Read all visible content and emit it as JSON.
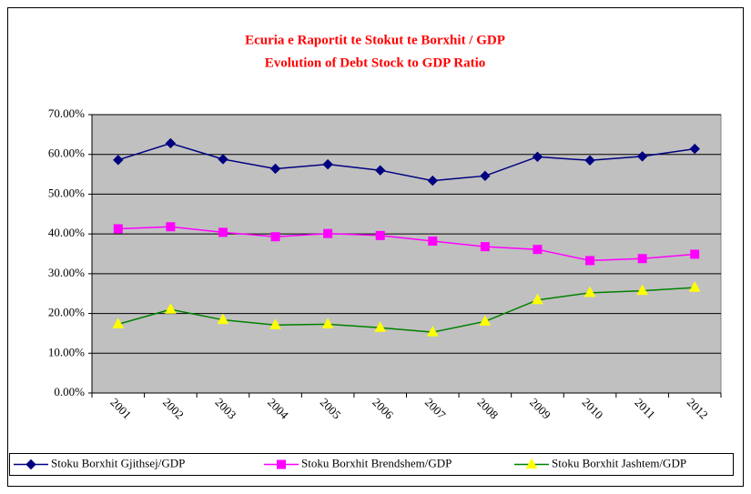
{
  "chart_data": {
    "type": "line",
    "title": "Ecuria e Raportit te Stokut te Borxhit / GDP",
    "subtitle": "Evolution of Debt Stock to GDP Ratio",
    "categories": [
      "2001",
      "2002",
      "2003",
      "2004",
      "2005",
      "2006",
      "2007",
      "2008",
      "2009",
      "2010",
      "2011",
      "2012"
    ],
    "series": [
      {
        "name": "Stoku Borxhit Gjithsej/GDP",
        "color": "#000080",
        "marker": "diamond",
        "marker_color": "#000080",
        "values": [
          58.6,
          62.8,
          58.8,
          56.4,
          57.5,
          56.0,
          53.4,
          54.6,
          59.4,
          58.5,
          59.5,
          61.4
        ]
      },
      {
        "name": "Stoku Borxhit Brendshem/GDP",
        "color": "#ff00ff",
        "marker": "square",
        "marker_color": "#ff00ff",
        "values": [
          41.3,
          41.8,
          40.4,
          39.3,
          40.1,
          39.6,
          38.2,
          36.8,
          36.1,
          33.3,
          33.8,
          34.9
        ]
      },
      {
        "name": "Stoku Borxhit Jashtem/GDP",
        "color": "#008000",
        "marker": "triangle",
        "marker_color": "#ffff00",
        "values": [
          17.3,
          21.0,
          18.4,
          17.1,
          17.3,
          16.4,
          15.3,
          18.0,
          23.4,
          25.2,
          25.7,
          26.5
        ]
      }
    ],
    "ylim": [
      0,
      70
    ],
    "yticks": [
      {
        "value": 0,
        "label": "0.00%"
      },
      {
        "value": 10,
        "label": "10.00%"
      },
      {
        "value": 20,
        "label": "20.00%"
      },
      {
        "value": 30,
        "label": "30.00%"
      },
      {
        "value": 40,
        "label": "40.00%"
      },
      {
        "value": 50,
        "label": "50.00%"
      },
      {
        "value": 60,
        "label": "60.00%"
      },
      {
        "value": 70,
        "label": "70.00%"
      }
    ],
    "grid": true,
    "plot_background": "#c0c0c0",
    "legend": "bottom"
  }
}
